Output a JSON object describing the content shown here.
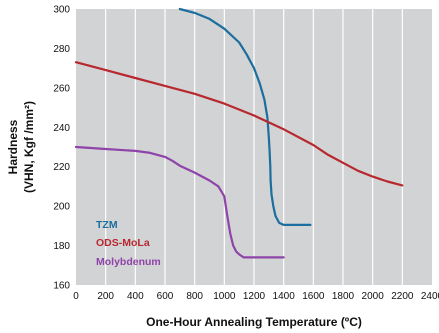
{
  "chart_data": {
    "type": "line",
    "xlabel": "One-Hour Annealing Temperature (ºC)",
    "ylabel_line1": "Hardness",
    "ylabel_line2": "(VHN, Kgf /mm²)",
    "xlim": [
      0,
      2400
    ],
    "ylim": [
      160,
      300
    ],
    "x_ticks": [
      0,
      200,
      400,
      600,
      800,
      1000,
      1200,
      1400,
      1600,
      1800,
      2000,
      2200,
      2400
    ],
    "y_ticks": [
      160,
      180,
      200,
      220,
      240,
      260,
      280,
      300
    ],
    "grid": "vertical",
    "plot_background": "#d2d3d5",
    "grid_color": "#ffffff",
    "legend_placement": "lower-left",
    "series": [
      {
        "name": "TZM",
        "color": "#1b6e9e",
        "points": [
          [
            700,
            300
          ],
          [
            800,
            298
          ],
          [
            900,
            295
          ],
          [
            1000,
            290
          ],
          [
            1100,
            283
          ],
          [
            1150,
            277
          ],
          [
            1200,
            270
          ],
          [
            1240,
            262
          ],
          [
            1270,
            254
          ],
          [
            1290,
            245
          ],
          [
            1300,
            235
          ],
          [
            1305,
            228
          ],
          [
            1310,
            220
          ],
          [
            1312,
            213
          ],
          [
            1318,
            206
          ],
          [
            1330,
            200
          ],
          [
            1345,
            195
          ],
          [
            1370,
            191.5
          ],
          [
            1400,
            190.5
          ],
          [
            1500,
            190.5
          ],
          [
            1580,
            190.5
          ]
        ]
      },
      {
        "name": "ODS-MoLa",
        "color": "#b8282f",
        "points": [
          [
            0,
            273
          ],
          [
            200,
            269
          ],
          [
            400,
            265
          ],
          [
            600,
            261
          ],
          [
            800,
            257
          ],
          [
            1000,
            252
          ],
          [
            1200,
            246
          ],
          [
            1400,
            239
          ],
          [
            1600,
            231
          ],
          [
            1700,
            226
          ],
          [
            1800,
            222
          ],
          [
            1900,
            218
          ],
          [
            2000,
            215
          ],
          [
            2100,
            212.5
          ],
          [
            2200,
            210.5
          ]
        ]
      },
      {
        "name": "Molybdenum",
        "color": "#8e44a8",
        "points": [
          [
            0,
            230
          ],
          [
            200,
            229
          ],
          [
            400,
            228
          ],
          [
            500,
            227
          ],
          [
            600,
            225
          ],
          [
            650,
            223
          ],
          [
            700,
            220.5
          ],
          [
            800,
            217
          ],
          [
            900,
            213
          ],
          [
            960,
            210
          ],
          [
            1000,
            205
          ],
          [
            1020,
            195
          ],
          [
            1040,
            186
          ],
          [
            1060,
            180
          ],
          [
            1080,
            177
          ],
          [
            1100,
            175.5
          ],
          [
            1130,
            174
          ],
          [
            1200,
            174
          ],
          [
            1300,
            174
          ],
          [
            1400,
            174
          ]
        ]
      }
    ]
  }
}
